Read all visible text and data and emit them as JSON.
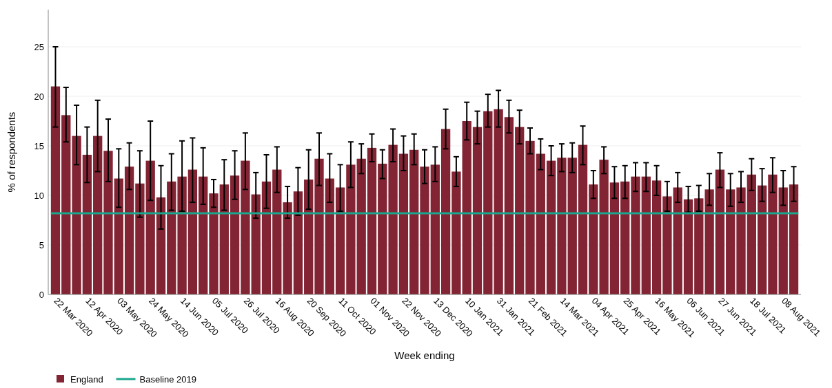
{
  "chart_data": {
    "type": "bar",
    "xlabel": "Week ending",
    "ylabel": "% of respondents",
    "categories": [
      "22 Mar 2020",
      null,
      null,
      "12 Apr 2020",
      null,
      null,
      "03 May 2020",
      null,
      null,
      "24 May 2020",
      null,
      null,
      "14 Jun 2020",
      null,
      null,
      "05 Jul 2020",
      null,
      null,
      "26 Jul 2020",
      null,
      null,
      "16 Aug 2020",
      null,
      null,
      "20 Sep 2020",
      null,
      null,
      "11 Oct 2020",
      null,
      null,
      "01 Nov 2020",
      null,
      null,
      "22 Nov 2020",
      null,
      null,
      "13 Dec 2020",
      null,
      null,
      "10 Jan 2021",
      null,
      null,
      "31 Jan 2021",
      null,
      null,
      "21 Feb 2021",
      null,
      null,
      "14 Mar 2021",
      null,
      null,
      "04 Apr 2021",
      null,
      null,
      "25 Apr 2021",
      null,
      null,
      "16 May 2021",
      null,
      null,
      "06 Jun 2021",
      null,
      null,
      "27 Jun 2021",
      null,
      null,
      "18 Jul 2021",
      null,
      null,
      "08 Aug 2021",
      null
    ],
    "series": [
      {
        "name": "England",
        "color": "#822433",
        "values": [
          21.0,
          18.1,
          16.0,
          14.1,
          16.0,
          14.5,
          11.7,
          12.9,
          11.2,
          13.5,
          9.8,
          11.4,
          11.9,
          12.6,
          11.9,
          10.2,
          11.1,
          12.0,
          13.5,
          10.1,
          11.4,
          12.6,
          9.3,
          10.4,
          11.6,
          13.7,
          11.7,
          10.8,
          13.1,
          13.7,
          14.8,
          13.2,
          15.1,
          14.2,
          14.6,
          12.9,
          13.1,
          16.7,
          12.4,
          17.5,
          16.9,
          18.5,
          18.7,
          17.9,
          16.9,
          15.5,
          14.2,
          13.5,
          13.8,
          13.8,
          15.1,
          11.1,
          13.6,
          11.3,
          11.4,
          11.9,
          11.9,
          11.5,
          9.9,
          10.8,
          9.6,
          9.7,
          10.6,
          12.6,
          10.6,
          10.8,
          12.1,
          11.0,
          12.1,
          10.8,
          11.1
        ],
        "errors": [
          [
            16.9,
            25.0
          ],
          [
            15.4,
            20.9
          ],
          [
            13.1,
            19.1
          ],
          [
            11.3,
            16.9
          ],
          [
            12.4,
            19.6
          ],
          [
            11.4,
            17.7
          ],
          [
            8.8,
            14.7
          ],
          [
            10.6,
            15.3
          ],
          [
            7.8,
            14.5
          ],
          [
            9.5,
            17.5
          ],
          [
            6.6,
            13.0
          ],
          [
            8.5,
            14.2
          ],
          [
            8.4,
            15.5
          ],
          [
            9.3,
            15.8
          ],
          [
            9.1,
            14.8
          ],
          [
            8.8,
            11.6
          ],
          [
            8.5,
            13.6
          ],
          [
            9.6,
            14.5
          ],
          [
            10.6,
            16.3
          ],
          [
            7.7,
            12.3
          ],
          [
            8.7,
            14.1
          ],
          [
            10.3,
            14.9
          ],
          [
            7.7,
            10.9
          ],
          [
            8.0,
            12.8
          ],
          [
            8.6,
            14.6
          ],
          [
            11.0,
            16.3
          ],
          [
            9.3,
            14.2
          ],
          [
            8.4,
            13.1
          ],
          [
            10.8,
            15.4
          ],
          [
            12.2,
            15.2
          ],
          [
            13.4,
            16.2
          ],
          [
            11.7,
            14.6
          ],
          [
            13.4,
            16.7
          ],
          [
            12.5,
            16.0
          ],
          [
            13.1,
            16.2
          ],
          [
            11.2,
            14.6
          ],
          [
            11.4,
            14.9
          ],
          [
            14.7,
            18.7
          ],
          [
            10.9,
            13.9
          ],
          [
            15.6,
            19.4
          ],
          [
            15.2,
            18.5
          ],
          [
            16.9,
            20.2
          ],
          [
            16.9,
            20.6
          ],
          [
            16.3,
            19.6
          ],
          [
            15.2,
            18.6
          ],
          [
            14.2,
            16.8
          ],
          [
            12.6,
            15.7
          ],
          [
            12.0,
            15.0
          ],
          [
            12.4,
            15.2
          ],
          [
            12.3,
            15.3
          ],
          [
            13.1,
            17.0
          ],
          [
            9.7,
            12.5
          ],
          [
            12.2,
            14.9
          ],
          [
            9.7,
            12.9
          ],
          [
            9.7,
            13.0
          ],
          [
            10.4,
            13.3
          ],
          [
            10.4,
            13.3
          ],
          [
            10.0,
            13.0
          ],
          [
            8.4,
            11.4
          ],
          [
            9.3,
            12.3
          ],
          [
            8.3,
            10.9
          ],
          [
            8.4,
            11.0
          ],
          [
            9.0,
            12.2
          ],
          [
            10.8,
            14.3
          ],
          [
            8.9,
            12.2
          ],
          [
            9.3,
            12.4
          ],
          [
            10.5,
            13.7
          ],
          [
            9.4,
            12.7
          ],
          [
            10.3,
            13.8
          ],
          [
            9.0,
            12.5
          ],
          [
            9.4,
            12.9
          ]
        ]
      }
    ],
    "ref_lines": [
      {
        "axis": "y",
        "value": 8.2,
        "label": "Baseline 2019",
        "color": "#1aa68c"
      }
    ],
    "ylim": [
      0,
      28.75
    ],
    "yticks": [
      0,
      5,
      10,
      15,
      20,
      25
    ],
    "grid": "y",
    "legend": "bottom left"
  }
}
